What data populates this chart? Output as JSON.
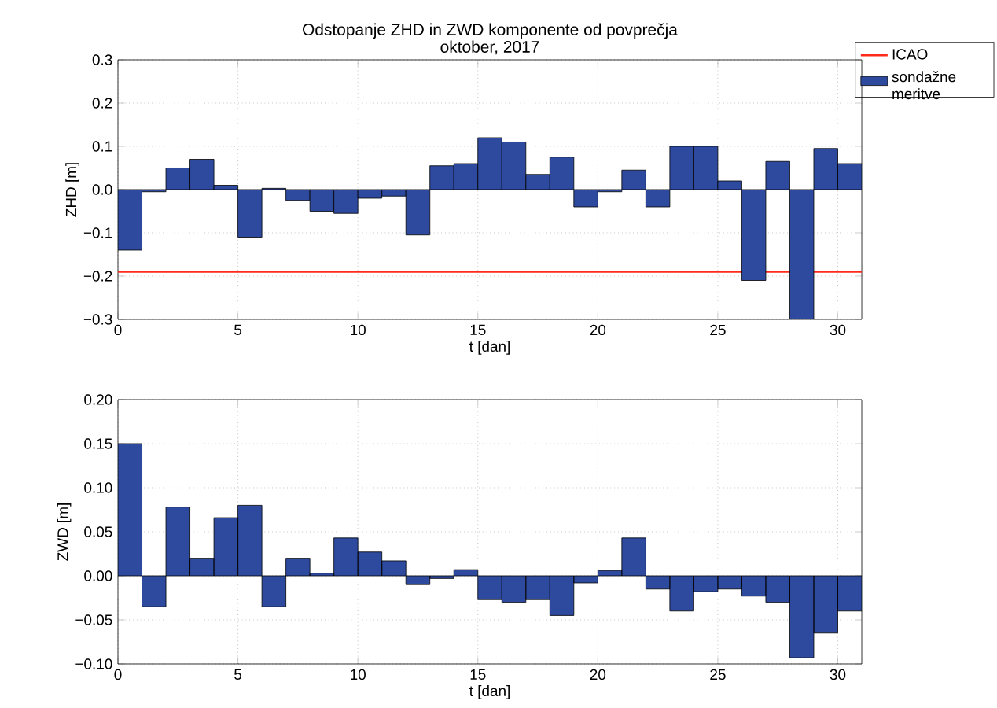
{
  "chart_data": [
    {
      "type": "bar",
      "title": "Odstopanje ZHD in ZWD komponente od povprečja",
      "subtitle": "oktober, 2017",
      "xlabel": "t [dan]",
      "ylabel": "ZHD [m]",
      "x": [
        0.5,
        1.5,
        2.5,
        3.5,
        4.5,
        5.5,
        6.5,
        7.5,
        8.5,
        9.5,
        10.5,
        11.5,
        12.5,
        13.5,
        14.5,
        15.5,
        16.5,
        17.5,
        18.5,
        19.5,
        20.5,
        21.5,
        22.5,
        23.5,
        24.5,
        25.5,
        26.5,
        27.5,
        28.5,
        29.5,
        30.5
      ],
      "series": [
        {
          "name": "sondažne meritve",
          "color": "#2e4a9e",
          "values": [
            -0.14,
            -0.005,
            0.05,
            0.07,
            0.01,
            -0.11,
            0.003,
            -0.025,
            -0.05,
            -0.055,
            -0.02,
            -0.015,
            -0.105,
            0.055,
            0.06,
            0.12,
            0.11,
            0.035,
            0.075,
            -0.04,
            -0.005,
            0.045,
            -0.04,
            0.1,
            0.1,
            0.02,
            -0.21,
            0.065,
            -0.3,
            0.095,
            0.06
          ]
        }
      ],
      "ref_lines": [
        {
          "axis": "y",
          "value": -0.19,
          "label": "ICAO",
          "color": "#ff2a1a"
        }
      ],
      "xlim": [
        0,
        31
      ],
      "xticks": [
        0,
        5,
        10,
        15,
        20,
        25,
        30
      ],
      "ylim": [
        -0.3,
        0.3
      ],
      "yticks": [
        {
          "value": -0.3,
          "label": "−0.3"
        },
        {
          "value": -0.2,
          "label": "−0.2"
        },
        {
          "value": -0.1,
          "label": "−0.1"
        },
        {
          "value": 0,
          "label": "0.0"
        },
        {
          "value": 0.1,
          "label": "0.1"
        },
        {
          "value": 0.2,
          "label": "0.2"
        },
        {
          "value": 0.3,
          "label": "0.3"
        }
      ],
      "grid": true,
      "legend": "top right"
    },
    {
      "type": "bar",
      "xlabel": "t [dan]",
      "ylabel": "ZWD [m]",
      "x": [
        0.5,
        1.5,
        2.5,
        3.5,
        4.5,
        5.5,
        6.5,
        7.5,
        8.5,
        9.5,
        10.5,
        11.5,
        12.5,
        13.5,
        14.5,
        15.5,
        16.5,
        17.5,
        18.5,
        19.5,
        20.5,
        21.5,
        22.5,
        23.5,
        24.5,
        25.5,
        26.5,
        27.5,
        28.5,
        29.5,
        30.5
      ],
      "values": [
        0.15,
        -0.035,
        0.078,
        0.02,
        0.066,
        0.08,
        -0.035,
        0.02,
        0.003,
        0.043,
        0.027,
        0.017,
        -0.01,
        -0.003,
        0.007,
        -0.027,
        -0.03,
        -0.027,
        -0.045,
        -0.008,
        0.006,
        0.043,
        -0.015,
        -0.04,
        -0.018,
        -0.015,
        -0.023,
        -0.03,
        -0.093,
        -0.065,
        -0.04
      ],
      "color": "#2e4a9e",
      "xlim": [
        0,
        31
      ],
      "xticks": [
        0,
        5,
        10,
        15,
        20,
        25,
        30
      ],
      "ylim": [
        -0.1,
        0.2
      ],
      "yticks": [
        {
          "value": -0.1,
          "label": "−0.10"
        },
        {
          "value": -0.05,
          "label": "−0.05"
        },
        {
          "value": 0,
          "label": "0.00"
        },
        {
          "value": 0.05,
          "label": "0.05"
        },
        {
          "value": 0.1,
          "label": "0.10"
        },
        {
          "value": 0.15,
          "label": "0.15"
        },
        {
          "value": 0.2,
          "label": "0.20"
        }
      ],
      "grid": true
    }
  ]
}
